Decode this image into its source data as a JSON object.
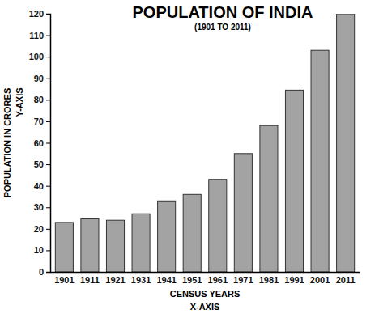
{
  "chart_data": {
    "type": "bar",
    "title": "POPULATION OF INDIA",
    "subtitle": "(1901 TO 2011)",
    "x_label": "CENSUS YEARS",
    "y_label": "POPULATION IN CRORES",
    "annotations": [
      "X-AXIS",
      "Y-AXIS"
    ],
    "categories": [
      "1901",
      "1911",
      "1921",
      "1931",
      "1941",
      "1951",
      "1961",
      "1971",
      "1981",
      "1991",
      "2001",
      "2011"
    ],
    "values": [
      23,
      25,
      24,
      27,
      33,
      36,
      43,
      55,
      68,
      84.5,
      103,
      120
    ],
    "color": "#a3a3a3",
    "ylim": [
      0,
      120
    ],
    "yticks": [
      0,
      10,
      20,
      30,
      40,
      50,
      60,
      70,
      80,
      90,
      100,
      110,
      120
    ],
    "grid": false,
    "data_labels": false
  }
}
